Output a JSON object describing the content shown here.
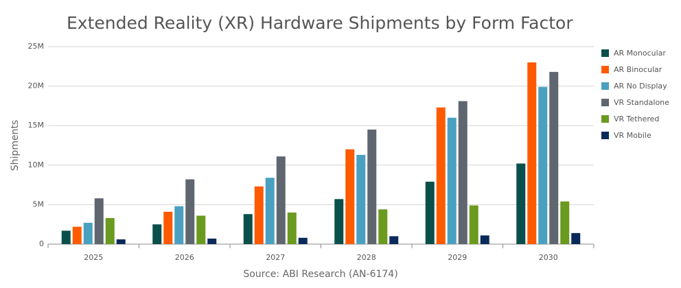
{
  "chart_data": {
    "type": "bar",
    "title": "Extended Reality (XR) Hardware Shipments by Form Factor",
    "y_label": "Shipments",
    "source": "Source: ABI Research (AN-6174)",
    "categories": [
      "2025",
      "2026",
      "2027",
      "2028",
      "2029",
      "2030"
    ],
    "series": [
      {
        "name": "AR Monocular",
        "color": "#0b4f4a",
        "values": [
          1700000,
          2500000,
          3800000,
          5700000,
          7900000,
          10200000
        ]
      },
      {
        "name": "AR Binocular",
        "color": "#ff5a00",
        "values": [
          2200000,
          4100000,
          7300000,
          12000000,
          17300000,
          23000000
        ]
      },
      {
        "name": "AR No Display",
        "color": "#4aa0c0",
        "values": [
          2700000,
          4800000,
          8400000,
          11300000,
          16000000,
          19900000
        ]
      },
      {
        "name": "VR Standalone",
        "color": "#5f6670",
        "values": [
          5800000,
          8200000,
          11100000,
          14500000,
          18100000,
          21800000
        ]
      },
      {
        "name": "VR Tethered",
        "color": "#6a9a1f",
        "values": [
          3300000,
          3600000,
          4000000,
          4400000,
          4900000,
          5400000
        ]
      },
      {
        "name": "VR Mobile",
        "color": "#0a2a5a",
        "values": [
          600000,
          700000,
          800000,
          1000000,
          1100000,
          1400000
        ]
      }
    ],
    "ylim": [
      0,
      25000000
    ],
    "yticks": [
      0,
      {
        "value": 5000000,
        "label": "5M"
      },
      {
        "value": 10000000,
        "label": "10M"
      },
      {
        "value": 15000000,
        "label": "15M"
      },
      {
        "value": 20000000,
        "label": "20M"
      },
      {
        "value": 25000000,
        "label": "25M"
      }
    ],
    "grid": true,
    "legend": "right"
  }
}
